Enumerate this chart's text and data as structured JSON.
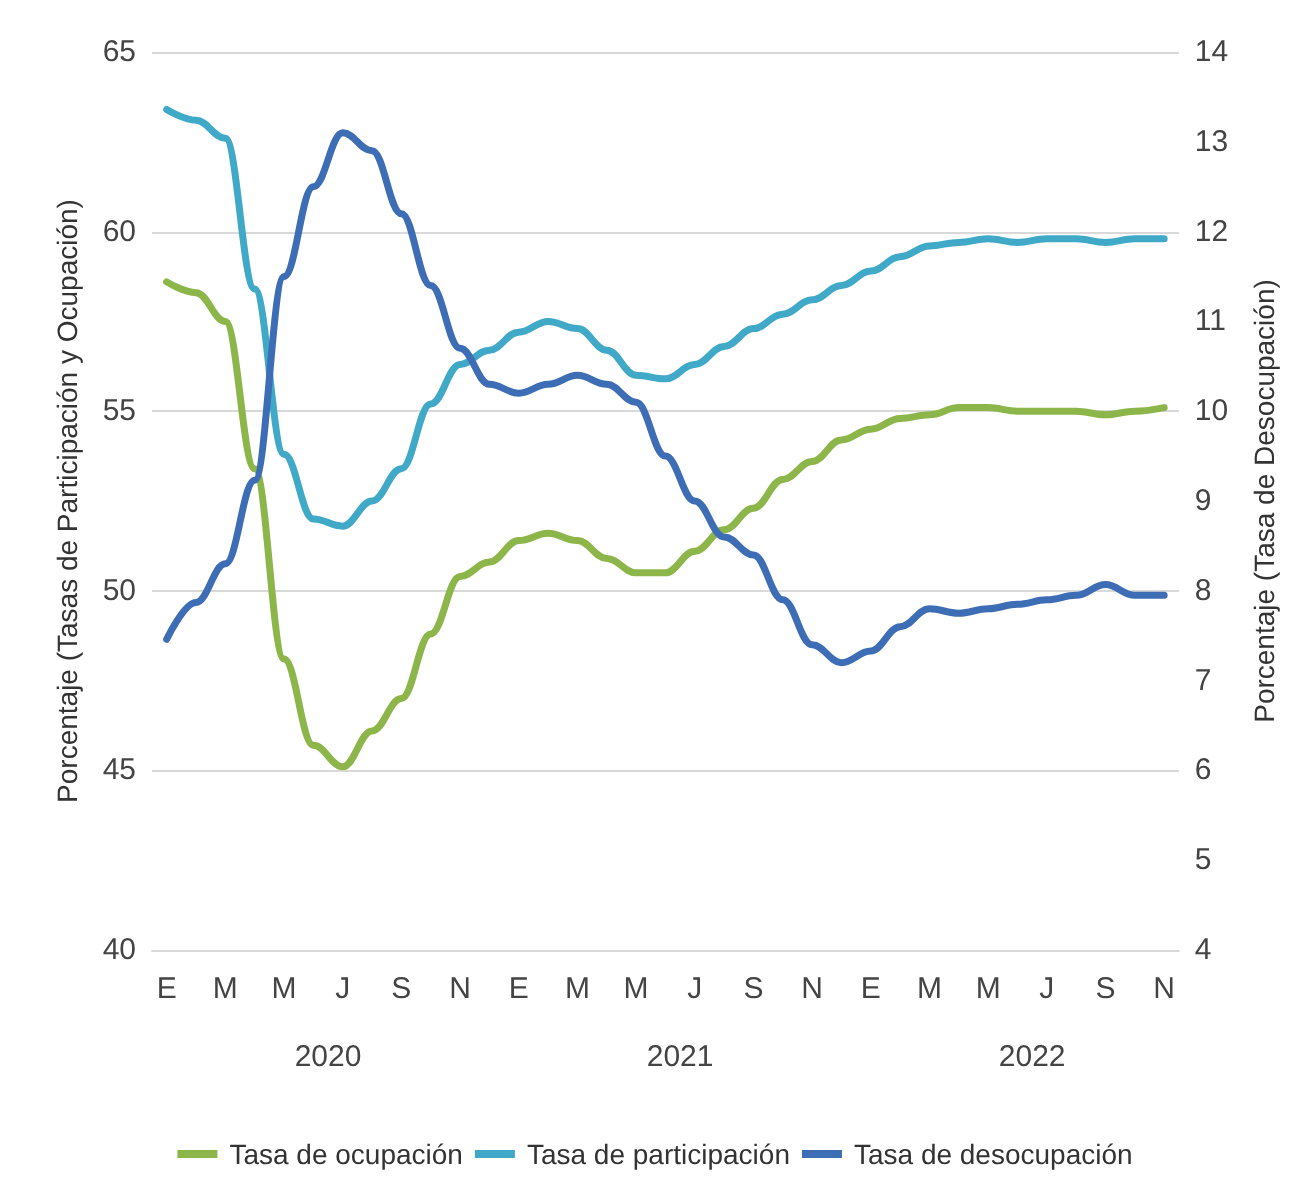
{
  "chart_data": {
    "type": "line",
    "categories": [
      "E",
      null,
      "M",
      null,
      "M",
      null,
      "J",
      null,
      "S",
      null,
      "N",
      null,
      "E",
      null,
      "M",
      null,
      "M",
      null,
      "J",
      null,
      "S",
      null,
      "N",
      null,
      "E",
      null,
      "M",
      null,
      "M",
      null,
      "J",
      null,
      "S",
      null,
      "N"
    ],
    "series": [
      {
        "name": "Tasa de ocupación",
        "color": "#8db64a",
        "values": [
          58.6,
          58.3,
          57.5,
          53.4,
          48.1,
          45.7,
          45.1,
          46.1,
          47.0,
          48.8,
          50.4,
          50.8,
          51.4,
          51.6,
          51.4,
          50.9,
          50.5,
          50.5,
          51.1,
          51.7,
          52.3,
          53.1,
          53.6,
          54.2,
          54.5,
          54.8,
          54.9,
          55.1,
          55.1,
          55.0,
          55.0,
          55.0,
          54.9,
          55.0,
          55.1
        ]
      },
      {
        "name": "Tasa de participación",
        "color": "#3fa9c7",
        "values": [
          63.4,
          63.1,
          62.6,
          58.4,
          53.8,
          52.0,
          51.8,
          52.5,
          53.4,
          55.2,
          56.3,
          56.7,
          57.2,
          57.5,
          57.3,
          56.7,
          56.0,
          55.9,
          56.3,
          56.8,
          57.3,
          57.7,
          58.1,
          58.5,
          58.9,
          59.3,
          59.6,
          59.7,
          59.8,
          59.7,
          59.8,
          59.8,
          59.7,
          59.8,
          59.8
        ]
      },
      {
        "name": "Tasa de desocupación",
        "color": "#3d6db5",
        "axis": "y2",
        "values": [
          7.46,
          7.87,
          8.3,
          9.23,
          11.5,
          12.5,
          13.1,
          12.9,
          12.2,
          11.4,
          10.7,
          10.3,
          10.2,
          10.3,
          10.4,
          10.3,
          10.1,
          9.5,
          9.0,
          8.6,
          8.4,
          7.9,
          7.4,
          7.2,
          7.33,
          7.6,
          7.8,
          7.75,
          7.8,
          7.85,
          7.9,
          7.95,
          8.07,
          7.95,
          7.95
        ]
      }
    ],
    "ylabel": "Porcentaje (Tasas de Participación y Ocupación)",
    "y2label": "Porcentaje (Tasa de Desocupación)",
    "ylim": [
      40,
      65
    ],
    "yticks": [
      40,
      45,
      50,
      55,
      60,
      65
    ],
    "y2lim": [
      4,
      14
    ],
    "y2ticks": [
      4,
      5,
      6,
      7,
      8,
      9,
      10,
      11,
      12,
      13,
      14
    ],
    "annotations": [
      "2020",
      "2021",
      "2022"
    ],
    "grid": "y",
    "legend": "bottom",
    "marker": "none",
    "line_style": "solid"
  }
}
